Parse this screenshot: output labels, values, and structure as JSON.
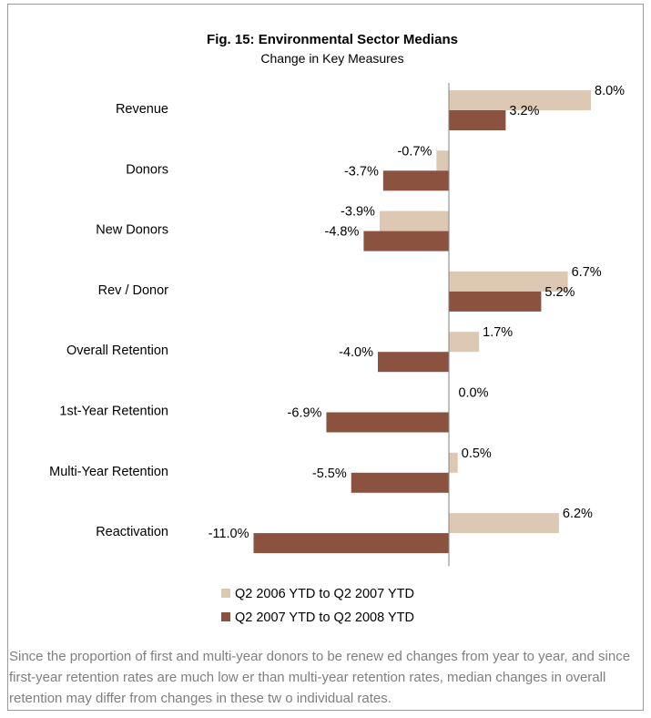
{
  "chart_data": {
    "type": "bar",
    "orientation": "horizontal",
    "title": "Fig. 15:  Environmental Sector Medians",
    "subtitle": "Change in Key Measures",
    "categories": [
      "Revenue",
      "Donors",
      "New  Donors",
      "Rev / Donor",
      "Overall Retention",
      "1st-Year Retention",
      "Multi-Year Retention",
      "Reactivation"
    ],
    "series": [
      {
        "name": "Q2 2006 YTD to Q2 2007 YTD",
        "color": "#ddc8b4",
        "values": [
          8.0,
          -0.7,
          -3.9,
          6.7,
          1.7,
          0.0,
          0.5,
          6.2
        ],
        "labels": [
          "8.0%",
          "-0.7%",
          "-3.9%",
          "6.7%",
          "1.7%",
          "0.0%",
          "0.5%",
          "6.2%"
        ]
      },
      {
        "name": "Q2 2007 YTD to Q2 2008 YTD",
        "color": "#8b5240",
        "values": [
          3.2,
          -3.7,
          -4.8,
          5.2,
          -4.0,
          -6.9,
          -5.5,
          -11.0
        ],
        "labels": [
          "3.2%",
          "-3.7%",
          "-4.8%",
          "5.2%",
          "-4.0%",
          "-6.9%",
          "-5.5%",
          "-11.0%"
        ]
      }
    ],
    "legend_position": "bottom",
    "grid": false
  },
  "footnote": "Since the proportion of first and multi-year donors to be renew ed changes from year to year, and since first-year retention rates are much low er than multi-year retention rates, median changes in overall retention may differ from changes in these tw o individual rates."
}
